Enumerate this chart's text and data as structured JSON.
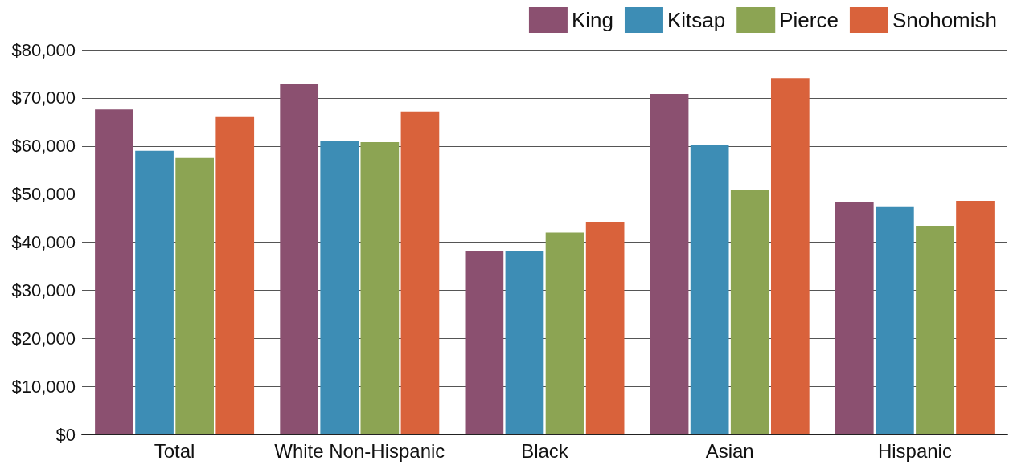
{
  "chart_data": {
    "type": "bar",
    "categories": [
      "Total",
      "White Non-Hispanic",
      "Black",
      "Asian",
      "Hispanic"
    ],
    "series": [
      {
        "name": "King",
        "color": "#8b5070",
        "values": [
          67600,
          73000,
          38100,
          70800,
          48300
        ]
      },
      {
        "name": "Kitsap",
        "color": "#3d8db5",
        "values": [
          59000,
          61000,
          38100,
          60300,
          47300
        ]
      },
      {
        "name": "Pierce",
        "color": "#8ca453",
        "values": [
          57500,
          60800,
          42000,
          50800,
          43400
        ]
      },
      {
        "name": "Snohomish",
        "color": "#d9623b",
        "values": [
          66000,
          67200,
          44100,
          74100,
          48600
        ]
      }
    ],
    "ylim": [
      0,
      80000
    ],
    "yticks": [
      {
        "value": 0,
        "label": "$0"
      },
      {
        "value": 10000,
        "label": "$10,000"
      },
      {
        "value": 20000,
        "label": "$20,000"
      },
      {
        "value": 30000,
        "label": "$30,000"
      },
      {
        "value": 40000,
        "label": "$40,000"
      },
      {
        "value": 50000,
        "label": "$50,000"
      },
      {
        "value": 60000,
        "label": "$60,000"
      },
      {
        "value": 70000,
        "label": "$70,000"
      },
      {
        "value": 80000,
        "label": "$80,000"
      }
    ],
    "grid": "y",
    "legend": "top right"
  }
}
